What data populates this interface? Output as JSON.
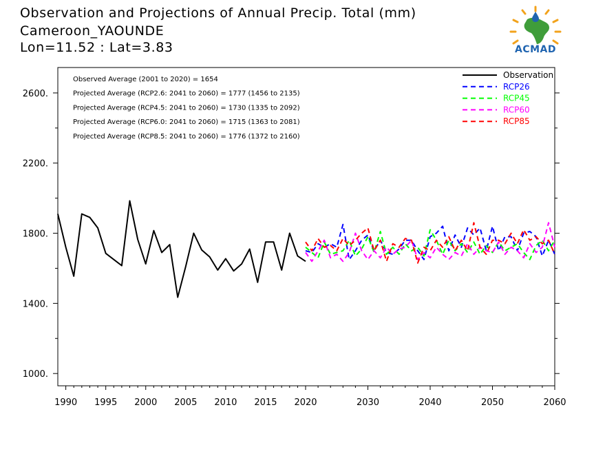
{
  "header": {
    "line1": "Observation and Projections of Annual Precip. Total (mm)",
    "line2": "Cameroon_YAOUNDE",
    "line3": "Lon=11.52 : Lat=3.83"
  },
  "logo": {
    "text": "ACMAD",
    "icon": "africa-drop-logo"
  },
  "chart_data": {
    "type": "line",
    "xlim": [
      1989,
      2060
    ],
    "ylim": [
      930,
      2745
    ],
    "x_ticks_left": [
      1990,
      1995,
      2000,
      2005,
      2010,
      2015,
      2020
    ],
    "x_ticks_right": [
      2030,
      2040,
      2050,
      2060
    ],
    "x_tick_labels": [
      "1990",
      "1995",
      "2000",
      "2005",
      "2010",
      "2015",
      "2020",
      "2030",
      "2040",
      "2050",
      "2060"
    ],
    "y_ticks": [
      1000,
      1400,
      1800,
      2200,
      2600
    ],
    "y_tick_labels": [
      "1000.",
      "1400.",
      "1800.",
      "2200.",
      "2600."
    ],
    "annotations": [
      "Observed Average (2001 to 2020) = 1654",
      "Projected Average (RCP2.6: 2041 to 2060) = 1777 (1456 to 2135)",
      "Projected Average (RCP4.5: 2041 to 2060) = 1730 (1335 to 2092)",
      "Projected Average (RCP6.0: 2041 to 2060) = 1715 (1363 to 2081)",
      "Projected Average (RCP8.5: 2041 to 2060) = 1776 (1372 to 2160)"
    ],
    "legend": {
      "placement": "top-right",
      "entries": [
        "Observation",
        "RCP26",
        "RCP45",
        "RCP60",
        "RCP85"
      ]
    },
    "series": [
      {
        "name": "Observation",
        "color": "#000000",
        "dashed": false,
        "x": [
          1989,
          1990,
          1991,
          1992,
          1993,
          1994,
          1995,
          1996,
          1997,
          1998,
          1999,
          2000,
          2001,
          2002,
          2003,
          2004,
          2005,
          2006,
          2007,
          2008,
          2009,
          2010,
          2011,
          2012,
          2013,
          2014,
          2015,
          2016,
          2017,
          2018,
          2019,
          2020
        ],
        "y": [
          1910,
          1720,
          1555,
          1910,
          1890,
          1830,
          1685,
          1650,
          1615,
          1985,
          1765,
          1625,
          1815,
          1690,
          1735,
          1435,
          1610,
          1800,
          1705,
          1665,
          1590,
          1655,
          1585,
          1625,
          1710,
          1520,
          1750,
          1750,
          1590,
          1800,
          1670,
          1640
        ]
      },
      {
        "name": "RCP26",
        "color": "#0000ff",
        "dashed": true,
        "x": [
          2020,
          2021,
          2022,
          2023,
          2024,
          2025,
          2026,
          2027,
          2028,
          2029,
          2030,
          2031,
          2032,
          2033,
          2034,
          2035,
          2036,
          2037,
          2038,
          2039,
          2040,
          2041,
          2042,
          2043,
          2044,
          2045,
          2046,
          2047,
          2048,
          2049,
          2050,
          2051,
          2052,
          2053,
          2054,
          2055,
          2056,
          2057,
          2058,
          2059,
          2060
        ],
        "y": [
          1700,
          1690,
          1740,
          1720,
          1740,
          1720,
          1850,
          1650,
          1700,
          1760,
          1790,
          1700,
          1760,
          1690,
          1680,
          1710,
          1760,
          1760,
          1700,
          1650,
          1780,
          1800,
          1840,
          1700,
          1790,
          1720,
          1830,
          1790,
          1830,
          1700,
          1840,
          1700,
          1780,
          1780,
          1700,
          1800,
          1810,
          1780,
          1670,
          1760,
          1680
        ]
      },
      {
        "name": "RCP45",
        "color": "#00ff00",
        "dashed": true,
        "x": [
          2020,
          2021,
          2022,
          2023,
          2024,
          2025,
          2026,
          2027,
          2028,
          2029,
          2030,
          2031,
          2032,
          2033,
          2034,
          2035,
          2036,
          2037,
          2038,
          2039,
          2040,
          2041,
          2042,
          2043,
          2044,
          2045,
          2046,
          2047,
          2048,
          2049,
          2050,
          2051,
          2052,
          2053,
          2054,
          2055,
          2056,
          2057,
          2058,
          2059,
          2060
        ],
        "y": [
          1720,
          1690,
          1660,
          1750,
          1680,
          1690,
          1700,
          1760,
          1670,
          1710,
          1780,
          1690,
          1810,
          1680,
          1720,
          1680,
          1740,
          1700,
          1720,
          1670,
          1820,
          1760,
          1680,
          1760,
          1700,
          1740,
          1690,
          1750,
          1680,
          1730,
          1690,
          1750,
          1700,
          1720,
          1740,
          1690,
          1650,
          1730,
          1760,
          1700,
          1760
        ]
      },
      {
        "name": "RCP60",
        "color": "#ff00ff",
        "dashed": true,
        "x": [
          2020,
          2021,
          2022,
          2023,
          2024,
          2025,
          2026,
          2027,
          2028,
          2029,
          2030,
          2031,
          2032,
          2033,
          2034,
          2035,
          2036,
          2037,
          2038,
          2039,
          2040,
          2041,
          2042,
          2043,
          2044,
          2045,
          2046,
          2047,
          2048,
          2049,
          2050,
          2051,
          2052,
          2053,
          2054,
          2055,
          2056,
          2057,
          2058,
          2059,
          2060
        ],
        "y": [
          1690,
          1640,
          1700,
          1760,
          1660,
          1680,
          1640,
          1690,
          1800,
          1700,
          1650,
          1700,
          1660,
          1720,
          1680,
          1710,
          1720,
          1760,
          1650,
          1690,
          1660,
          1720,
          1680,
          1650,
          1690,
          1670,
          1740,
          1680,
          1720,
          1700,
          1690,
          1750,
          1680,
          1720,
          1700,
          1660,
          1740,
          1690,
          1720,
          1860,
          1720
        ]
      },
      {
        "name": "RCP85",
        "color": "#ff0000",
        "dashed": true,
        "x": [
          2020,
          2021,
          2022,
          2023,
          2024,
          2025,
          2026,
          2027,
          2028,
          2029,
          2030,
          2031,
          2032,
          2033,
          2034,
          2035,
          2036,
          2037,
          2038,
          2039,
          2040,
          2041,
          2042,
          2043,
          2044,
          2045,
          2046,
          2047,
          2048,
          2049,
          2050,
          2051,
          2052,
          2053,
          2054,
          2055,
          2056,
          2057,
          2058,
          2059,
          2060
        ],
        "y": [
          1750,
          1700,
          1770,
          1720,
          1730,
          1700,
          1770,
          1730,
          1760,
          1800,
          1830,
          1700,
          1760,
          1640,
          1740,
          1720,
          1770,
          1760,
          1630,
          1720,
          1700,
          1760,
          1720,
          1780,
          1700,
          1760,
          1700,
          1860,
          1720,
          1680,
          1760,
          1760,
          1740,
          1800,
          1740,
          1820,
          1760,
          1780,
          1740,
          1760,
          1680
        ]
      }
    ]
  }
}
